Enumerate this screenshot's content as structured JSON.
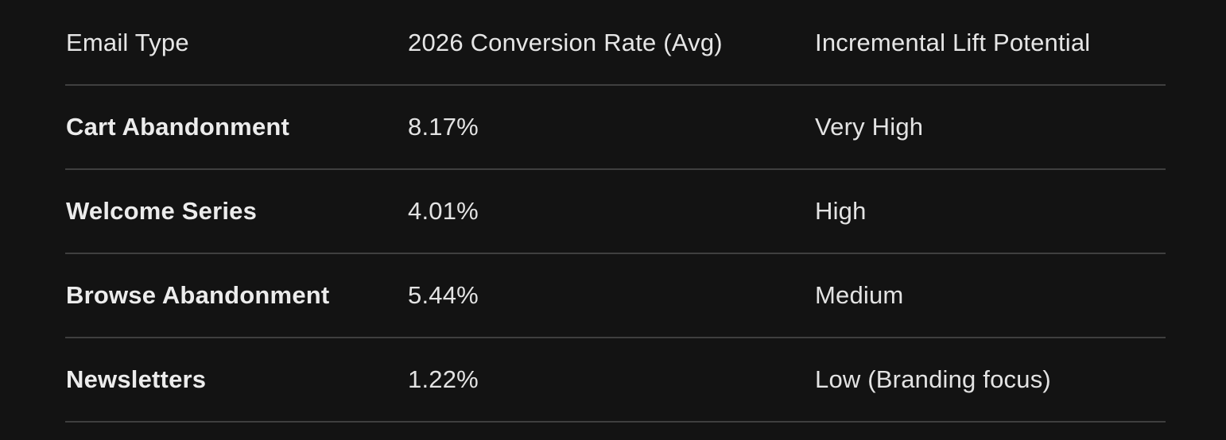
{
  "table": {
    "headers": [
      "Email Type",
      "2026 Conversion Rate (Avg)",
      "Incremental Lift Potential"
    ],
    "rows": [
      {
        "type": "Cart Abandonment",
        "rate": "8.17%",
        "lift": "Very High"
      },
      {
        "type": "Welcome Series",
        "rate": "4.01%",
        "lift": "High"
      },
      {
        "type": "Browse Abandonment",
        "rate": "5.44%",
        "lift": "Medium"
      },
      {
        "type": "Newsletters",
        "rate": "1.22%",
        "lift": "Low (Branding focus)"
      }
    ]
  },
  "colors": {
    "background": "#131313",
    "text": "#e3e3e3",
    "divider": "#3f3f3f"
  }
}
